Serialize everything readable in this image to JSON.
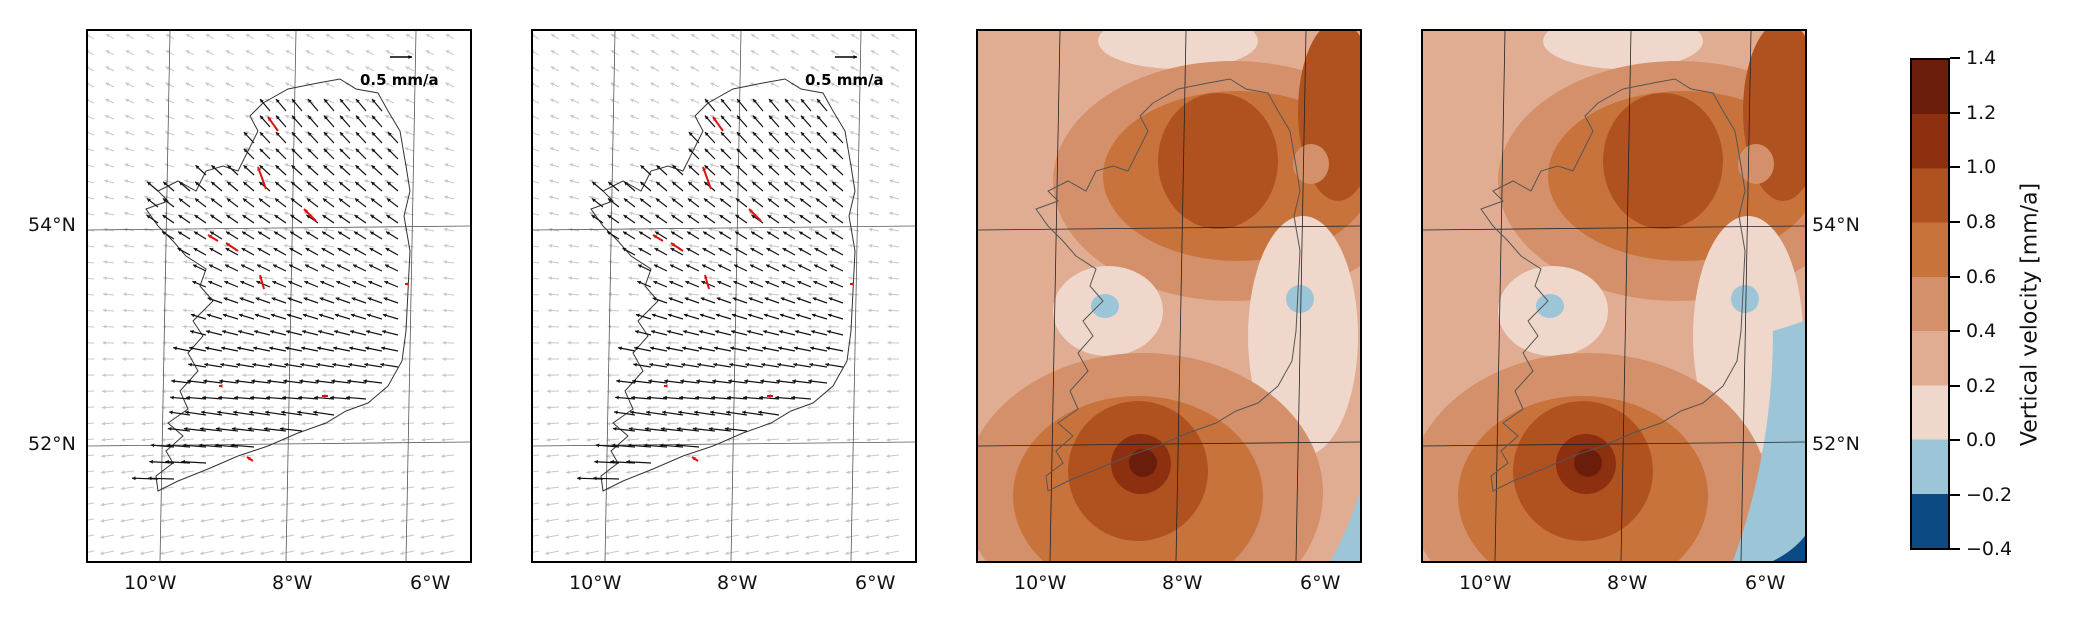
{
  "panels": [
    {
      "type": "vector",
      "scale_label": "0.5 mm/a"
    },
    {
      "type": "vector",
      "scale_label": "0.5 mm/a"
    },
    {
      "type": "contour"
    },
    {
      "type": "contour"
    }
  ],
  "x_tick_labels": [
    "10°W",
    "8°W",
    "6°W"
  ],
  "y_tick_labels": [
    "54°N",
    "52°N"
  ],
  "colorbar": {
    "title": "Vertical velocity [mm/a]",
    "ticks": [
      "1.4",
      "1.2",
      "1.0",
      "0.8",
      "0.6",
      "0.4",
      "0.2",
      "0.0",
      "−0.2",
      "−0.4"
    ],
    "levels": [
      {
        "range": [
          1.2,
          1.4
        ],
        "color": "#6b1d0b"
      },
      {
        "range": [
          1.0,
          1.2
        ],
        "color": "#8c3010"
      },
      {
        "range": [
          0.8,
          1.0
        ],
        "color": "#b0521f"
      },
      {
        "range": [
          0.6,
          0.8
        ],
        "color": "#c8733c"
      },
      {
        "range": [
          0.4,
          0.6
        ],
        "color": "#d4906a"
      },
      {
        "range": [
          0.2,
          0.4
        ],
        "color": "#e1ad92"
      },
      {
        "range": [
          0.0,
          0.2
        ],
        "color": "#efd7cb"
      },
      {
        "range": [
          -0.2,
          0.0
        ],
        "color": "#9cc5d8"
      },
      {
        "range": [
          -0.4,
          -0.2
        ],
        "color": "#0b4a82"
      }
    ]
  }
}
